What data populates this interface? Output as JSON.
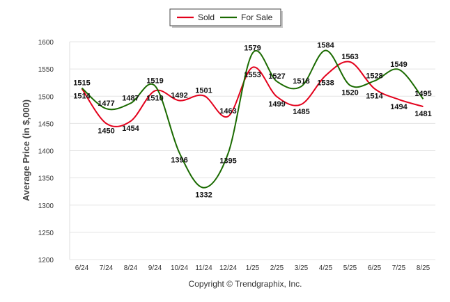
{
  "chart_data": {
    "type": "line",
    "categories": [
      "6/24",
      "7/24",
      "8/24",
      "9/24",
      "10/24",
      "11/24",
      "12/24",
      "1/25",
      "2/25",
      "3/25",
      "4/25",
      "5/25",
      "6/25",
      "7/25",
      "8/25"
    ],
    "series": [
      {
        "name": "Sold",
        "color": "#e3001b",
        "values": [
          1514,
          1450,
          1454,
          1510,
          1492,
          1501,
          1463,
          1553,
          1499,
          1485,
          1538,
          1563,
          1514,
          1494,
          1481
        ]
      },
      {
        "name": "For Sale",
        "color": "#1a6a00",
        "values": [
          1515,
          1477,
          1487,
          1519,
          1396,
          1332,
          1395,
          1579,
          1527,
          1518,
          1584,
          1520,
          1528,
          1549,
          1495
        ]
      }
    ],
    "ylabel": "Average Price (in $,000)",
    "xlabel": "",
    "ylim": [
      1200,
      1600
    ],
    "yticks": [
      1200,
      1250,
      1300,
      1350,
      1400,
      1450,
      1500,
      1550,
      1600
    ],
    "grid": true,
    "legend": "top-center"
  },
  "credit": "Copyright © Trendgraphix, Inc."
}
